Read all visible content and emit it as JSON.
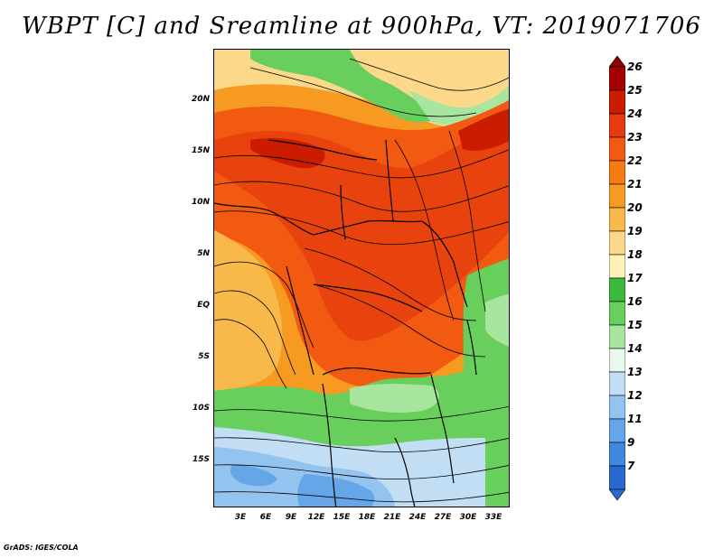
{
  "title": "WBPT [C] and Sreamline at 900hPa, VT: 2019071706",
  "footer": "GrADS: IGES/COLA",
  "map": {
    "lat_labels": [
      "20N",
      "15N",
      "10N",
      "5N",
      "EQ",
      "5S",
      "10S",
      "15S"
    ],
    "lon_labels": [
      "3E",
      "6E",
      "9E",
      "12E",
      "15E",
      "18E",
      "21E",
      "24E",
      "27E",
      "30E",
      "33E"
    ]
  },
  "colorbar": {
    "labels": [
      "26",
      "25",
      "24",
      "23",
      "22",
      "21",
      "20",
      "19",
      "18",
      "17",
      "16",
      "15",
      "14",
      "13",
      "12",
      "11",
      "9",
      "7"
    ],
    "colors": [
      "#a50000",
      "#cc1c00",
      "#e63b10",
      "#f25a12",
      "#f57b12",
      "#f79a22",
      "#f9b84a",
      "#fbd88a",
      "#fff2b8",
      "#3cb83c",
      "#69cf5c",
      "#a8e6a0",
      "#e8f8ee",
      "#c2def5",
      "#93c3ef",
      "#65a6e8",
      "#3f88de",
      "#2868cf"
    ]
  },
  "colors": {
    "hot": "#e8430e",
    "warm": "#f79a22",
    "mild": "#fbd88a",
    "green": "#69cf5c",
    "cool": "#93c3ef",
    "cold": "#3f88de"
  }
}
